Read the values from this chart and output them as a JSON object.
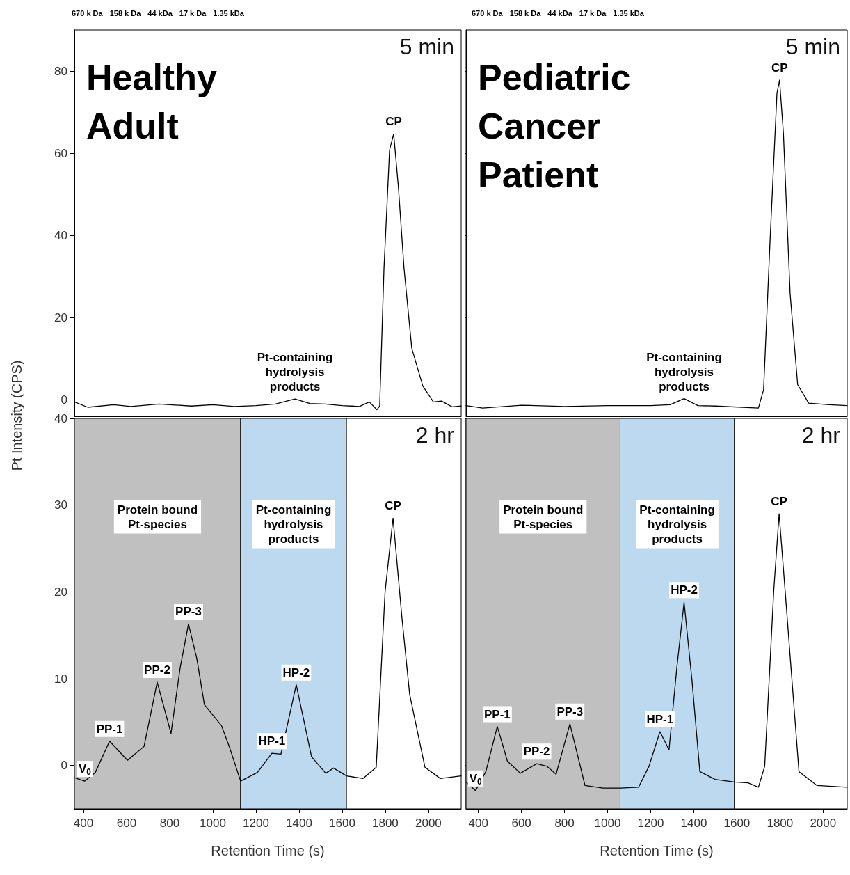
{
  "chart_data": [
    {
      "type": "line",
      "title": "Healthy\nAdult",
      "subtitle": "5 min",
      "ylabel": "Pt Intensity (CPS)",
      "xlim": [
        358,
        2152
      ],
      "ylim": [
        -4,
        90
      ],
      "yticks": [
        0,
        20,
        40,
        60,
        80
      ],
      "tick_labels": "y",
      "marker": "none",
      "line_style": "solid",
      "x": [
        358,
        420,
        540,
        620,
        750,
        900,
        1000,
        1100,
        1200,
        1290,
        1381,
        1450,
        1520,
        1600,
        1680,
        1726,
        1761,
        1774,
        1794,
        1820,
        1839,
        1861,
        1887,
        1923,
        1974,
        2023,
        2061,
        2110,
        2152
      ],
      "series": [
        {
          "color": "#000000",
          "values": [
            -0.5,
            -1.8,
            -1.2,
            -1.6,
            -1.0,
            -1.5,
            -1.2,
            -1.6,
            -1.4,
            -1.0,
            0.2,
            -0.9,
            -1.0,
            -1.4,
            -1.6,
            -0.5,
            -2.4,
            -1.5,
            32,
            60.8,
            64.7,
            51.7,
            32,
            12.5,
            3.4,
            -0.5,
            -0.3,
            -1.7,
            -1.5
          ]
        }
      ],
      "annotations": [
        "670 k Da",
        "158 k Da",
        "44 kDa",
        "17 k Da",
        "1.35 kDa",
        {
          "text": "CP",
          "x": 1839,
          "y": 64.7
        },
        {
          "text": "Pt-containing\nhydrolysis\nproducts",
          "x": 1381,
          "y": 0.2
        }
      ]
    },
    {
      "type": "line",
      "title": "Pediatric\nCancer\nPatient",
      "subtitle": "5 min",
      "xlim": [
        343,
        2112
      ],
      "ylim": [
        -4,
        90
      ],
      "yticks": [
        0,
        20,
        40,
        60,
        80
      ],
      "tick_labels": false,
      "marker": "none",
      "line_style": "solid",
      "x": [
        343,
        420,
        600,
        800,
        1000,
        1200,
        1290,
        1355,
        1419,
        1500,
        1700,
        1724,
        1754,
        1786,
        1798,
        1816,
        1847,
        1882,
        1933,
        2029,
        2112
      ],
      "series": [
        {
          "color": "#000000",
          "values": [
            -1.4,
            -2.0,
            -1.3,
            -1.6,
            -1.4,
            -1.4,
            -1.2,
            0.3,
            -1.4,
            -1.5,
            -2.0,
            2.5,
            38.8,
            74.6,
            77.8,
            64.8,
            25.9,
            3.7,
            -0.8,
            -1.2,
            -1.4
          ]
        }
      ],
      "annotations": [
        "670 k Da",
        "158 k Da",
        "44 kDa",
        "17 k Da",
        "1.35 kDa",
        {
          "text": "CP",
          "x": 1798,
          "y": 77.8
        },
        {
          "text": "Pt-containing\nhydrolysis\nproducts",
          "x": 1355,
          "y": 0.3
        }
      ]
    },
    {
      "type": "line",
      "subtitle": "2 hr",
      "xlabel": "Retention Time (s)",
      "xlim": [
        358,
        2152
      ],
      "ylim": [
        -5,
        40
      ],
      "xticks": [
        400,
        600,
        800,
        1000,
        1200,
        1400,
        1600,
        1800,
        2000
      ],
      "yticks": [
        0,
        10,
        20,
        30,
        40
      ],
      "marker": "none",
      "line_style": "solid",
      "x": [
        358,
        406,
        455,
        521,
        604,
        681,
        742,
        806,
        848,
        887,
        926,
        961,
        1040,
        1076,
        1129,
        1207,
        1274,
        1316,
        1387,
        1458,
        1524,
        1560,
        1620,
        1697,
        1758,
        1799,
        1836,
        1877,
        1913,
        1984,
        2055,
        2152
      ],
      "series": [
        {
          "color": "#000000",
          "values": [
            -1.4,
            -1.8,
            -0.8,
            2.8,
            0.6,
            2.2,
            9.6,
            3.7,
            11.2,
            16.3,
            12.3,
            7.0,
            4.6,
            2.2,
            -1.8,
            -0.8,
            1.4,
            1.3,
            9.3,
            1.0,
            -0.9,
            -0.3,
            -1.2,
            -1.5,
            -0.2,
            20,
            28.5,
            17.1,
            8.2,
            -0.2,
            -1.5,
            -1.2
          ]
        }
      ],
      "bands": [
        {
          "axis": "x",
          "from": 358,
          "to": 1129,
          "label": "Protein bound\nPt-species",
          "color": "#c0c0c0"
        },
        {
          "axis": "x",
          "from": 1129,
          "to": 1620,
          "label": "Pt-containing\nhydrolysis\nproducts",
          "color": "#bcd9f0"
        }
      ],
      "annotations": [
        {
          "text": "V$_{0}$",
          "x": 406,
          "y": -1.8
        },
        {
          "text": "PP-1",
          "x": 521,
          "y": 2.8
        },
        {
          "text": "PP-2",
          "x": 742,
          "y": 9.6
        },
        {
          "text": "PP-3",
          "x": 887,
          "y": 16.3
        },
        {
          "text": "HP-1",
          "x": 1274,
          "y": 1.4
        },
        {
          "text": "HP-2",
          "x": 1387,
          "y": 9.3
        },
        {
          "text": "CP",
          "x": 1836,
          "y": 28.5
        }
      ]
    },
    {
      "type": "line",
      "subtitle": "2 hr",
      "xlabel": "Retention Time (s)",
      "xlim": [
        343,
        2112
      ],
      "ylim": [
        -5,
        40
      ],
      "xticks": [
        400,
        600,
        800,
        1000,
        1200,
        1400,
        1600,
        1800,
        2000
      ],
      "yticks": [
        0,
        10,
        20,
        30,
        40
      ],
      "tick_labels": "x",
      "marker": "none",
      "line_style": "solid",
      "x": [
        343,
        387,
        435,
        488,
        535,
        595,
        671,
        719,
        761,
        825,
        895,
        978,
        1061,
        1144,
        1192,
        1243,
        1285,
        1321,
        1355,
        1392,
        1428,
        1499,
        1588,
        1652,
        1700,
        1729,
        1771,
        1796,
        1824,
        1888,
        1971,
        2112
      ],
      "series": [
        {
          "color": "#000000",
          "values": [
            -1.9,
            -2.9,
            -0.7,
            4.5,
            0.5,
            -0.9,
            0.2,
            -0.1,
            -1.0,
            4.8,
            -2.3,
            -2.6,
            -2.6,
            -2.5,
            -0.1,
            3.9,
            1.8,
            11.2,
            18.8,
            9.7,
            -0.7,
            -1.6,
            -1.9,
            -2.0,
            -2.5,
            -0.1,
            20.1,
            29.0,
            20.1,
            -0.7,
            -2.3,
            -2.5
          ]
        }
      ],
      "bands": [
        {
          "axis": "x",
          "from": 343,
          "to": 1058,
          "label": "Protein bound\nPt-species",
          "color": "#c0c0c0"
        },
        {
          "axis": "x",
          "from": 1058,
          "to": 1588,
          "label": "Pt-containing\nhydrolysis\nproducts",
          "color": "#bcd9f0"
        }
      ],
      "annotations": [
        {
          "text": "V$_{0}$",
          "x": 387,
          "y": -2.9
        },
        {
          "text": "PP-1",
          "x": 488,
          "y": 4.5
        },
        {
          "text": "PP-2",
          "x": 671,
          "y": 0.2
        },
        {
          "text": "PP-3",
          "x": 825,
          "y": 4.8
        },
        {
          "text": "HP-1",
          "x": 1243,
          "y": 3.9
        },
        {
          "text": "HP-2",
          "x": 1355,
          "y": 18.8
        },
        {
          "text": "CP",
          "x": 1796,
          "y": 29.0
        }
      ]
    }
  ]
}
